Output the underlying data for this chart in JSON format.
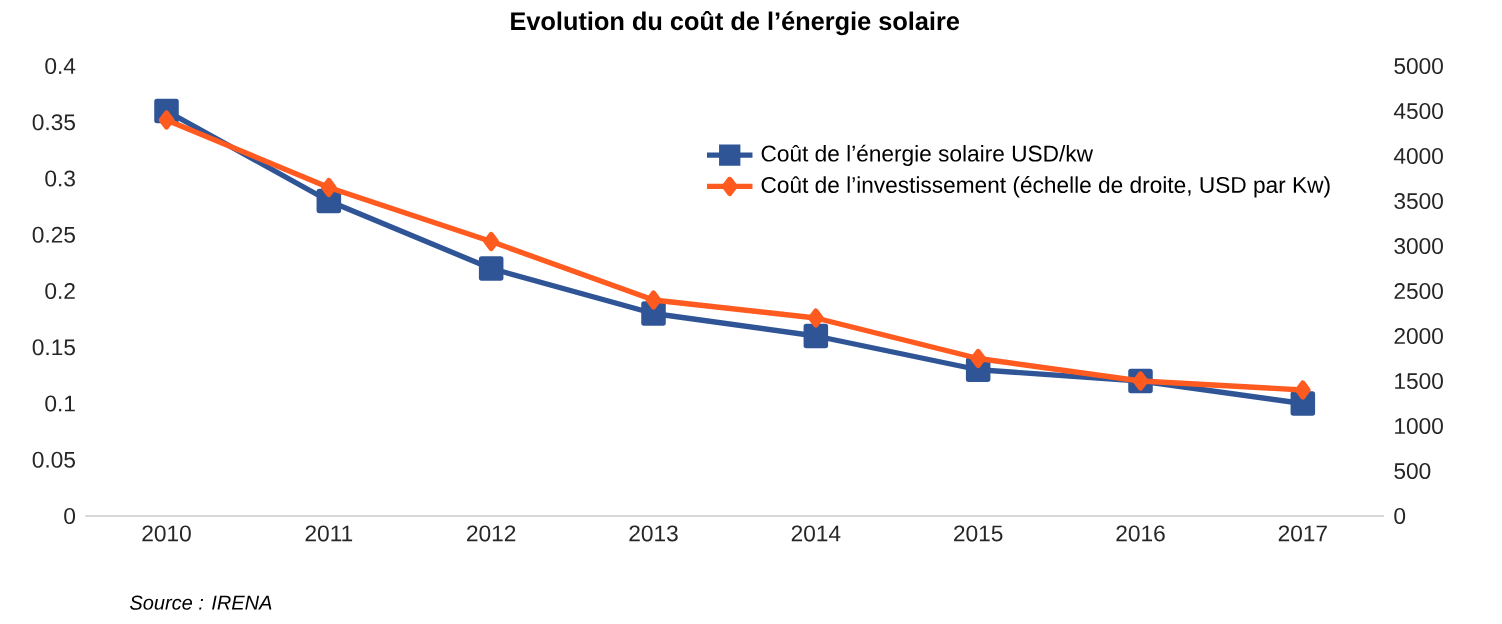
{
  "chart_data": {
    "type": "line",
    "title": "Evolution du coût de l’énergie solaire",
    "categories": [
      "2010",
      "2011",
      "2012",
      "2013",
      "2014",
      "2015",
      "2016",
      "2017"
    ],
    "series": [
      {
        "name": "Coût de l’énergie solaire USD/kw",
        "color": "#2f5597",
        "marker": "square",
        "values": [
          0.36,
          0.28,
          0.22,
          0.18,
          0.16,
          0.13,
          0.12,
          0.1
        ]
      },
      {
        "name": "Coût de l’investissement (échelle de droite, USD par Kw)",
        "color": "#ff5a1f",
        "marker": "diamond",
        "axis": "y2",
        "values": [
          4400,
          3650,
          3050,
          2400,
          2200,
          1750,
          1500,
          1400
        ]
      }
    ],
    "ylim": [
      0,
      0.4
    ],
    "yticks": [
      0,
      0.05,
      0.1,
      0.15,
      0.2,
      0.25,
      0.3,
      0.35,
      0.4
    ],
    "y2lim": [
      0,
      5000
    ],
    "y2ticks": [
      0,
      500,
      1000,
      1500,
      2000,
      2500,
      3000,
      3500,
      4000,
      4500,
      5000
    ],
    "legend": "top right",
    "grid": false,
    "annotations": [
      "Source : IRENA"
    ]
  }
}
